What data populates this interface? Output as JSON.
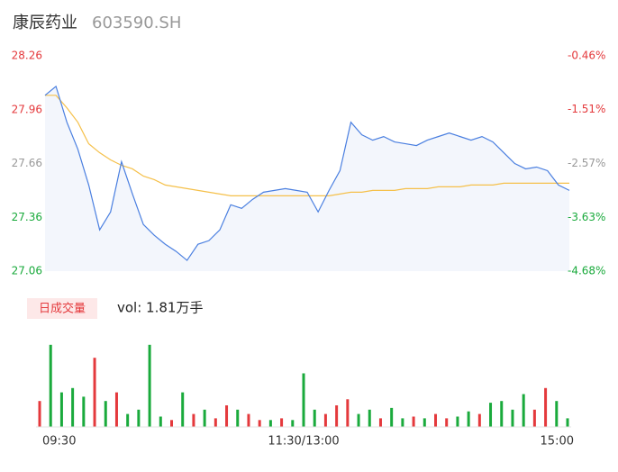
{
  "header": {
    "name": "康辰药业",
    "code": "603590.SH"
  },
  "chart_data": [
    {
      "type": "line",
      "x": [
        0,
        5,
        10,
        15,
        20,
        25,
        30,
        35,
        40,
        45,
        50,
        55,
        60,
        65,
        70,
        75,
        80,
        85,
        90,
        95,
        100,
        105,
        110,
        115,
        120,
        125,
        130,
        135,
        140,
        145,
        150,
        155,
        160,
        165,
        170,
        175,
        180,
        185,
        190,
        195,
        200,
        205,
        210,
        215,
        220,
        225,
        230,
        235,
        240
      ],
      "xlim": [
        0,
        240
      ],
      "ylim": [
        27.06,
        28.26
      ],
      "yticks": [
        28.26,
        27.96,
        27.66,
        27.36,
        27.06
      ],
      "ytick_colors": [
        "#e4393c",
        "#e4393c",
        "#999999",
        "#1aaa3c",
        "#1aaa3c"
      ],
      "y2lim": [
        -4.68,
        -0.46
      ],
      "y2ticks": [
        {
          "value": -0.46,
          "label": "-0.46%"
        },
        {
          "value": -1.51,
          "label": "-1.51%"
        },
        {
          "value": -2.57,
          "label": "-2.57%"
        },
        {
          "value": -3.63,
          "label": "-3.63%"
        },
        {
          "value": -4.68,
          "label": "-4.68%"
        }
      ],
      "area_color": "#f3f6fc",
      "series": [
        {
          "name": "price",
          "color": "#4a7fe0",
          "values": [
            28.04,
            28.09,
            27.89,
            27.74,
            27.54,
            27.29,
            27.39,
            27.67,
            27.49,
            27.32,
            27.26,
            27.21,
            27.17,
            27.12,
            27.21,
            27.23,
            27.29,
            27.43,
            27.41,
            27.46,
            27.5,
            27.51,
            27.52,
            27.51,
            27.5,
            27.39,
            27.51,
            27.62,
            27.89,
            27.82,
            27.79,
            27.81,
            27.78,
            27.77,
            27.76,
            27.79,
            27.81,
            27.83,
            27.81,
            27.79,
            27.81,
            27.78,
            27.72,
            27.66,
            27.63,
            27.64,
            27.62,
            27.54,
            27.51
          ]
        },
        {
          "name": "average",
          "color": "#f5c04a",
          "values": [
            28.04,
            28.04,
            27.97,
            27.89,
            27.77,
            27.72,
            27.68,
            27.65,
            27.63,
            27.59,
            27.57,
            27.54,
            27.53,
            27.52,
            27.51,
            27.5,
            27.49,
            27.48,
            27.48,
            27.48,
            27.48,
            27.48,
            27.48,
            27.48,
            27.48,
            27.48,
            27.48,
            27.49,
            27.5,
            27.5,
            27.51,
            27.51,
            27.51,
            27.52,
            27.52,
            27.52,
            27.53,
            27.53,
            27.53,
            27.54,
            27.54,
            27.54,
            27.55,
            27.55,
            27.55,
            27.55,
            27.55,
            27.55,
            27.55
          ]
        }
      ]
    },
    {
      "type": "bar",
      "label": "日成交量",
      "summary": "vol: 1.81万手",
      "x": [
        0,
        5,
        10,
        15,
        20,
        25,
        30,
        35,
        40,
        45,
        50,
        55,
        60,
        65,
        70,
        75,
        80,
        85,
        90,
        95,
        100,
        105,
        110,
        115,
        120,
        125,
        130,
        135,
        140,
        145,
        150,
        155,
        160,
        165,
        170,
        175,
        180,
        185,
        190,
        195,
        200,
        205,
        210,
        215,
        220,
        225,
        230,
        235,
        240
      ],
      "xlim": [
        0,
        240
      ],
      "ylim": [
        0,
        1000
      ],
      "xticks": [
        {
          "value": 0,
          "label": "09:30"
        },
        {
          "value": 120,
          "label": "11:30/13:00"
        },
        {
          "value": 240,
          "label": "15:00"
        }
      ],
      "values": [
        300,
        950,
        400,
        450,
        350,
        800,
        300,
        400,
        150,
        200,
        950,
        120,
        80,
        400,
        150,
        200,
        100,
        250,
        200,
        150,
        80,
        80,
        100,
        80,
        620,
        200,
        150,
        250,
        320,
        150,
        200,
        100,
        220,
        100,
        120,
        100,
        150,
        100,
        120,
        180,
        150,
        280,
        300,
        200,
        380,
        200,
        450,
        300,
        100
      ],
      "colors": [
        "#e4393c",
        "#1aaa3c",
        "#1aaa3c",
        "#1aaa3c",
        "#1aaa3c",
        "#e4393c",
        "#1aaa3c",
        "#e4393c",
        "#1aaa3c",
        "#1aaa3c",
        "#1aaa3c",
        "#1aaa3c",
        "#e4393c",
        "#1aaa3c",
        "#e4393c",
        "#1aaa3c",
        "#e4393c",
        "#e4393c",
        "#1aaa3c",
        "#e4393c",
        "#e4393c",
        "#1aaa3c",
        "#e4393c",
        "#1aaa3c",
        "#1aaa3c",
        "#1aaa3c",
        "#e4393c",
        "#e4393c",
        "#e4393c",
        "#1aaa3c",
        "#1aaa3c",
        "#e4393c",
        "#1aaa3c",
        "#1aaa3c",
        "#e4393c",
        "#1aaa3c",
        "#e4393c",
        "#e4393c",
        "#1aaa3c",
        "#1aaa3c",
        "#e4393c",
        "#1aaa3c",
        "#1aaa3c",
        "#1aaa3c",
        "#1aaa3c",
        "#e4393c",
        "#e4393c",
        "#1aaa3c",
        "#1aaa3c"
      ]
    }
  ]
}
